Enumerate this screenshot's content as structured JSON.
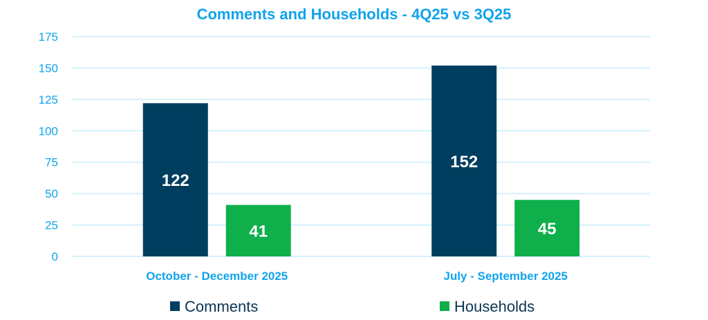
{
  "chart_data": {
    "type": "bar",
    "title": "Comments and Households - 4Q25 vs 3Q25",
    "categories": [
      "October - December 2025",
      "July - September 2025"
    ],
    "series": [
      {
        "name": "Comments",
        "values": [
          122,
          152
        ],
        "color": "#003e5f"
      },
      {
        "name": "Households",
        "values": [
          41,
          45
        ],
        "color": "#0faf4b"
      }
    ],
    "xlabel": "",
    "ylabel": "",
    "ylim": [
      0,
      175
    ],
    "yticks": [
      0,
      25,
      50,
      75,
      100,
      125,
      150,
      175
    ],
    "grid": true,
    "legend": "bottom"
  }
}
